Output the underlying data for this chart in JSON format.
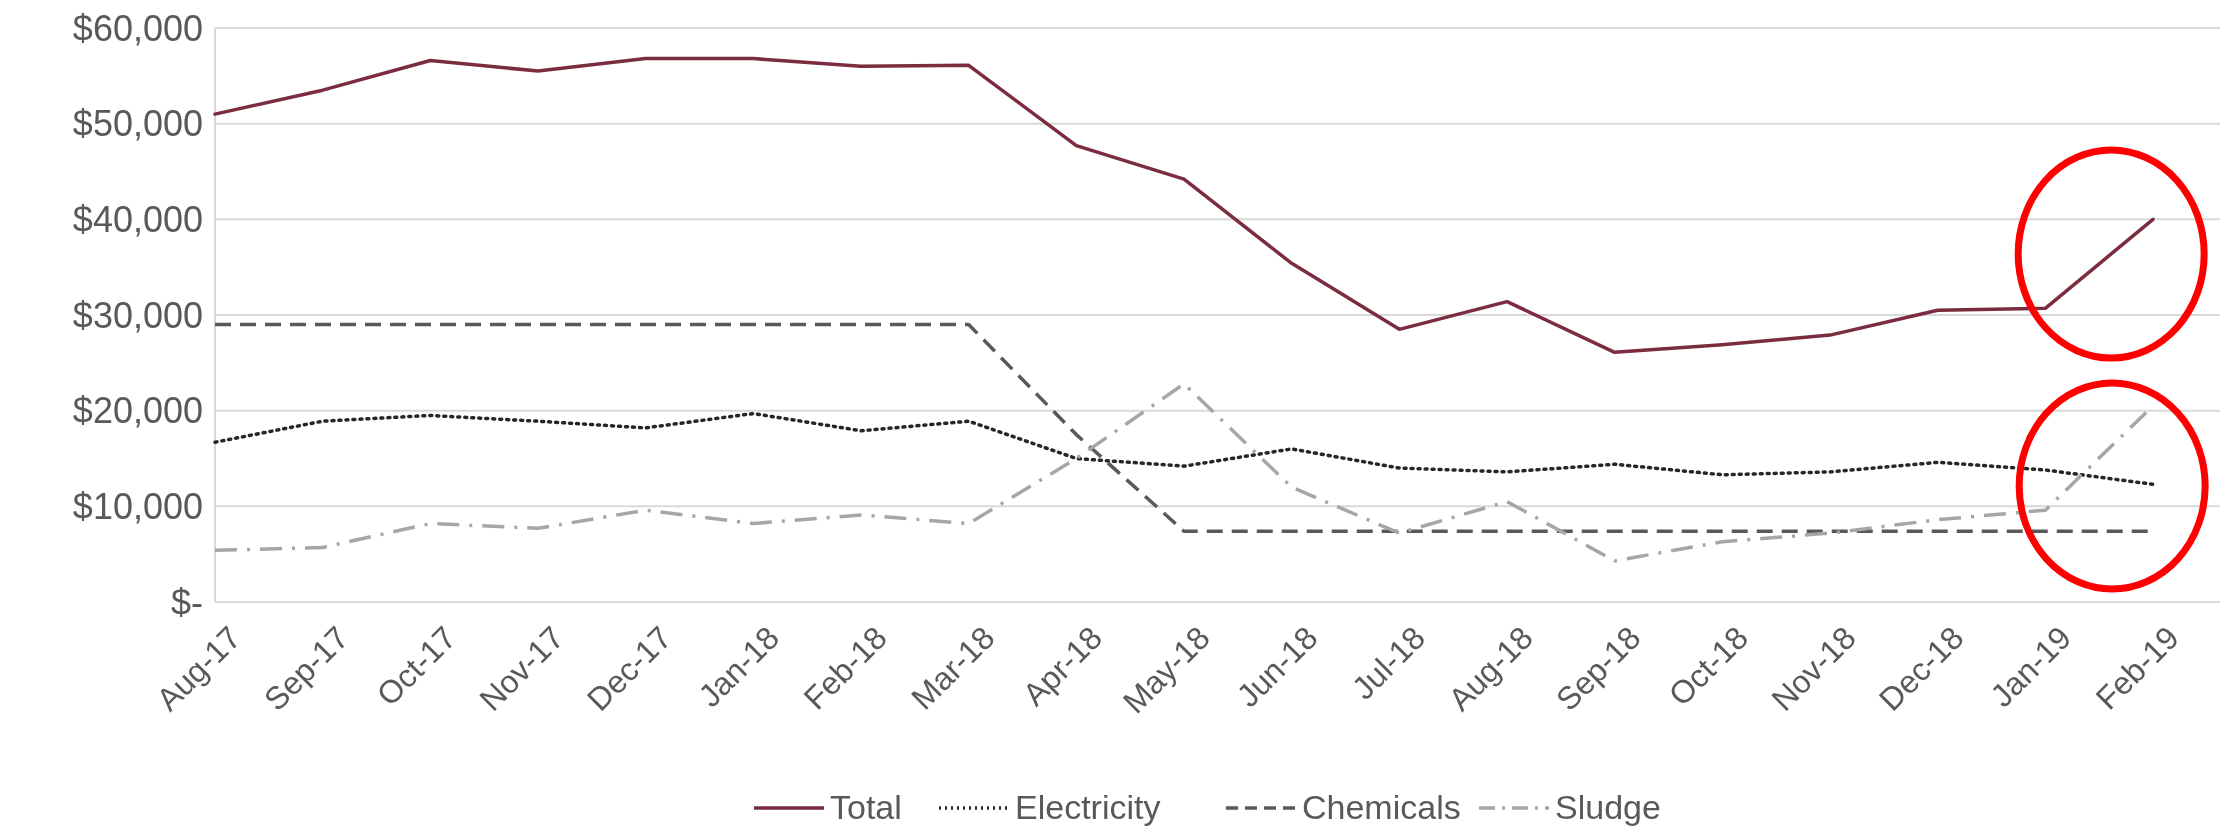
{
  "chart_data": {
    "type": "line",
    "categories": [
      "Aug-17",
      "Sep-17",
      "Oct-17",
      "Nov-17",
      "Dec-17",
      "Jan-18",
      "Feb-18",
      "Mar-18",
      "Apr-18",
      "May-18",
      "Jun-18",
      "Jul-18",
      "Aug-18",
      "Sep-18",
      "Oct-18",
      "Nov-18",
      "Dec-18",
      "Jan-19",
      "Feb-19"
    ],
    "ylim": [
      0,
      60000
    ],
    "yticks": [
      {
        "value": 0,
        "label": "$-"
      },
      {
        "value": 10000,
        "label": "$10,000"
      },
      {
        "value": 20000,
        "label": "$20,000"
      },
      {
        "value": 30000,
        "label": "$30,000"
      },
      {
        "value": 40000,
        "label": "$40,000"
      },
      {
        "value": 50000,
        "label": "$50,000"
      },
      {
        "value": 60000,
        "label": "$60,000"
      }
    ],
    "grid": "y",
    "legend": "bottom",
    "marker": "none",
    "series": [
      {
        "name": "Total",
        "color": "#7b2c3e",
        "line_style": "solid",
        "values": [
          51000,
          53500,
          56600,
          55500,
          56800,
          56800,
          56000,
          56100,
          47700,
          44200,
          35400,
          28500,
          31400,
          26100,
          26900,
          27900,
          30500,
          30700,
          40000
        ]
      },
      {
        "name": "Electricity",
        "color": "#262626",
        "line_style": "dotted",
        "values": [
          16700,
          18900,
          19500,
          18900,
          18200,
          19700,
          17900,
          18900,
          15000,
          14200,
          16000,
          14000,
          13600,
          14400,
          13300,
          13600,
          14600,
          13800,
          12300
        ]
      },
      {
        "name": "Chemicals",
        "color": "#595959",
        "line_style": "dashed",
        "values": [
          29000,
          29000,
          29000,
          29000,
          29000,
          29000,
          29000,
          29000,
          17500,
          7400,
          7400,
          7400,
          7400,
          7400,
          7400,
          7400,
          7400,
          7400,
          7400
        ]
      },
      {
        "name": "Sludge",
        "color": "#a6a6a6",
        "line_style": "dashdot",
        "values": [
          5400,
          5700,
          8200,
          7700,
          9600,
          8200,
          9100,
          8200,
          15000,
          22800,
          12000,
          7200,
          10500,
          4300,
          6300,
          7200,
          8600,
          9600,
          20500
        ]
      }
    ]
  }
}
